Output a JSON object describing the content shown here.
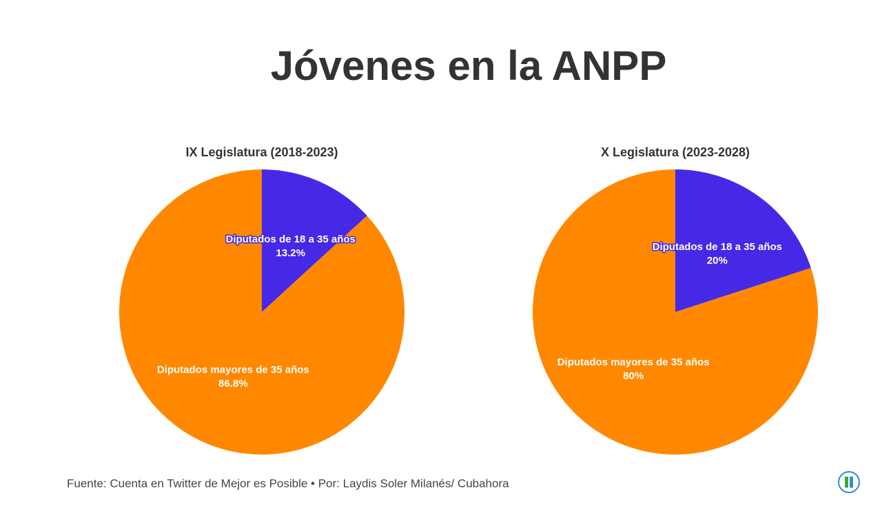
{
  "title": "Jóvenes en la ANPP",
  "source": "Fuente: Cuenta en Twitter de Mejor es Posible • Por: Laydis Soler Milanés/ Cubahora",
  "chart_data": [
    {
      "type": "pie",
      "title": "IX Legislatura (2018-2023)",
      "categories": [
        "Diputados de 18 a 35 años",
        "Diputados mayores de 35 años"
      ],
      "values": [
        13.2,
        86.8
      ],
      "value_labels": [
        "13.2%",
        "86.8%"
      ],
      "colors": [
        "#4529e6",
        "#ff8800"
      ]
    },
    {
      "type": "pie",
      "title": "X Legislatura (2023-2028)",
      "categories": [
        "Diputados de 18 a 35 años",
        "Diputados mayores de 35 años"
      ],
      "values": [
        20,
        80
      ],
      "value_labels": [
        "20%",
        "80%"
      ],
      "colors": [
        "#4529e6",
        "#ff8800"
      ]
    }
  ]
}
